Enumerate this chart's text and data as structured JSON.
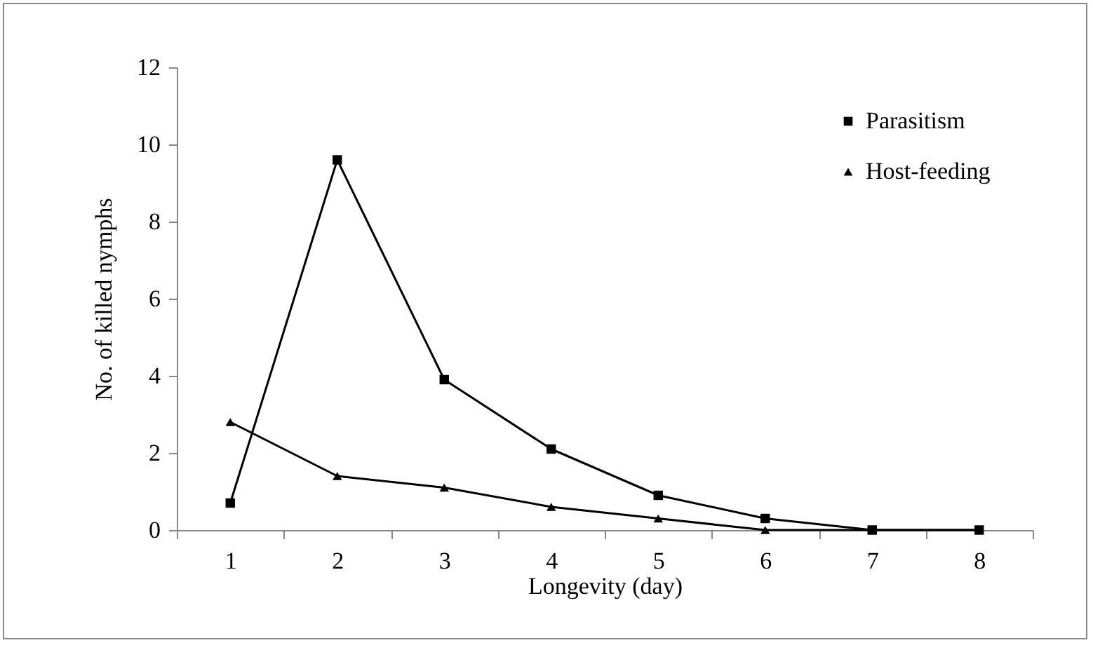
{
  "chart_data": {
    "type": "line",
    "xlabel": "Longevity (day)",
    "ylabel": "No. of killed  nymphs",
    "categories": [
      "1",
      "2",
      "3",
      "4",
      "5",
      "6",
      "7",
      "8"
    ],
    "series": [
      {
        "name": "Parasitism",
        "color": "#000000",
        "marker": "square",
        "values": [
          0.7,
          9.6,
          3.9,
          2.1,
          0.9,
          0.3,
          0,
          0
        ]
      },
      {
        "name": "Host-feeding",
        "color": "#000000",
        "marker": "triangle",
        "values": [
          2.8,
          1.4,
          1.1,
          0.6,
          0.3,
          0,
          0,
          0
        ]
      }
    ],
    "ylim": [
      0,
      12
    ],
    "yticks": [
      0,
      2,
      4,
      6,
      8,
      10,
      12
    ],
    "grid": false,
    "legend": "top right",
    "line_style": "solid"
  }
}
